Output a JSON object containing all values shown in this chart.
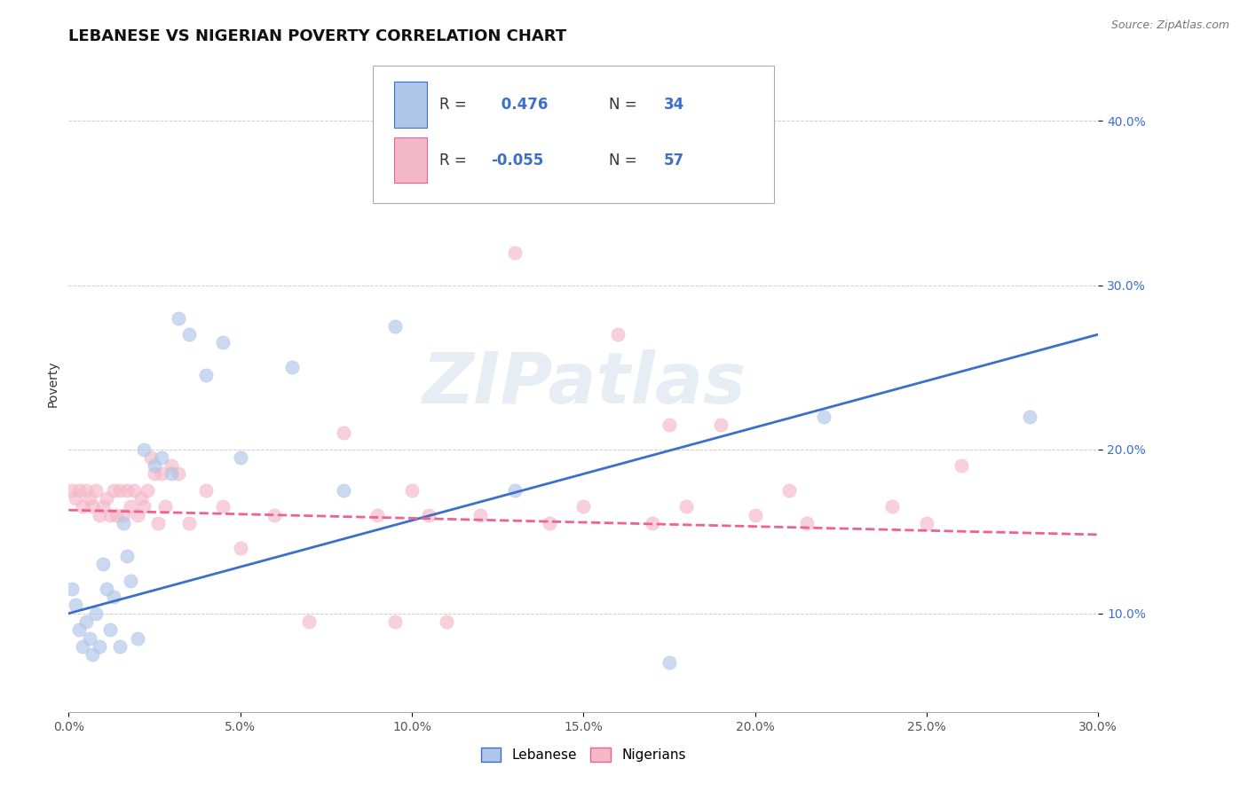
{
  "title": "LEBANESE VS NIGERIAN POVERTY CORRELATION CHART",
  "source": "Source: ZipAtlas.com",
  "ylabel": "Poverty",
  "xlim": [
    0.0,
    0.3
  ],
  "ylim": [
    0.04,
    0.44
  ],
  "xticks": [
    0.0,
    0.05,
    0.1,
    0.15,
    0.2,
    0.25,
    0.3
  ],
  "xticklabels": [
    "0.0%",
    "5.0%",
    "10.0%",
    "15.0%",
    "20.0%",
    "25.0%",
    "30.0%"
  ],
  "yticks": [
    0.1,
    0.2,
    0.3,
    0.4
  ],
  "yticklabels": [
    "10.0%",
    "20.0%",
    "30.0%",
    "40.0%"
  ],
  "grid_color": "#bbbbbb",
  "background_color": "#ffffff",
  "watermark": "ZIPatlas",
  "lebanese_color": "#aec6e8",
  "nigerian_color": "#f5b8c8",
  "lebanese_line_color": "#3b6fc9",
  "nigerian_line_color": "#f06090",
  "scatter_alpha": 0.65,
  "scatter_size": 120,
  "leb_line_start": 0.1,
  "leb_line_end": 0.27,
  "nig_line_start": 0.163,
  "nig_line_end": 0.148,
  "lebanese_x": [
    0.001,
    0.002,
    0.003,
    0.004,
    0.005,
    0.006,
    0.007,
    0.008,
    0.009,
    0.01,
    0.011,
    0.012,
    0.013,
    0.015,
    0.016,
    0.017,
    0.018,
    0.02,
    0.022,
    0.025,
    0.027,
    0.03,
    0.032,
    0.035,
    0.04,
    0.045,
    0.05,
    0.065,
    0.08,
    0.095,
    0.13,
    0.175,
    0.22,
    0.28
  ],
  "lebanese_y": [
    0.115,
    0.105,
    0.09,
    0.08,
    0.095,
    0.085,
    0.075,
    0.1,
    0.08,
    0.13,
    0.115,
    0.09,
    0.11,
    0.08,
    0.155,
    0.135,
    0.12,
    0.085,
    0.2,
    0.19,
    0.195,
    0.185,
    0.28,
    0.27,
    0.245,
    0.265,
    0.195,
    0.25,
    0.175,
    0.275,
    0.175,
    0.07,
    0.22,
    0.22
  ],
  "nigerian_x": [
    0.001,
    0.002,
    0.003,
    0.004,
    0.005,
    0.006,
    0.007,
    0.008,
    0.009,
    0.01,
    0.011,
    0.012,
    0.013,
    0.014,
    0.015,
    0.016,
    0.017,
    0.018,
    0.019,
    0.02,
    0.021,
    0.022,
    0.023,
    0.024,
    0.025,
    0.026,
    0.027,
    0.028,
    0.03,
    0.032,
    0.035,
    0.04,
    0.045,
    0.05,
    0.06,
    0.07,
    0.08,
    0.09,
    0.095,
    0.1,
    0.105,
    0.11,
    0.12,
    0.13,
    0.14,
    0.15,
    0.16,
    0.17,
    0.175,
    0.18,
    0.19,
    0.2,
    0.21,
    0.215,
    0.24,
    0.25,
    0.26
  ],
  "nigerian_y": [
    0.175,
    0.17,
    0.175,
    0.165,
    0.175,
    0.17,
    0.165,
    0.175,
    0.16,
    0.165,
    0.17,
    0.16,
    0.175,
    0.16,
    0.175,
    0.16,
    0.175,
    0.165,
    0.175,
    0.16,
    0.17,
    0.165,
    0.175,
    0.195,
    0.185,
    0.155,
    0.185,
    0.165,
    0.19,
    0.185,
    0.155,
    0.175,
    0.165,
    0.14,
    0.16,
    0.095,
    0.21,
    0.16,
    0.095,
    0.175,
    0.16,
    0.095,
    0.16,
    0.32,
    0.155,
    0.165,
    0.27,
    0.155,
    0.215,
    0.165,
    0.215,
    0.16,
    0.175,
    0.155,
    0.165,
    0.155,
    0.19
  ],
  "title_fontsize": 13,
  "tick_fontsize": 10,
  "legend_fontsize": 12
}
